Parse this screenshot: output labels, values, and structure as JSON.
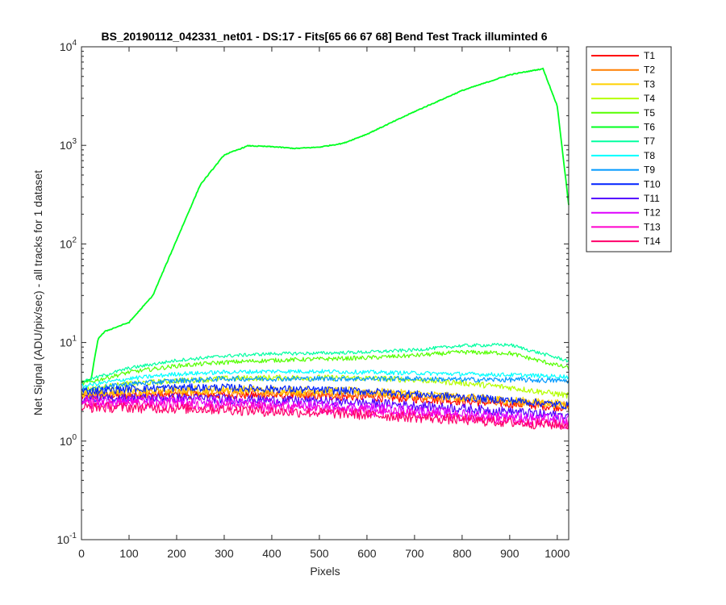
{
  "chart_data": {
    "type": "line",
    "title": "BS_20190112_042331_net01 - DS:17 - Fits[65  66  67  68]    Bend Test          Track illuminted 6",
    "xlabel": "Pixels",
    "ylabel": "Net Signal (ADU/pix/sec) - all tracks for 1 dataset",
    "xlim": [
      0,
      1024
    ],
    "ylim": [
      0.1,
      10000
    ],
    "yscale": "log",
    "xticks": [
      "0",
      "100",
      "200",
      "300",
      "400",
      "500",
      "600",
      "700",
      "800",
      "900",
      "1000"
    ],
    "yticks": [
      {
        "base": "10",
        "exp": "-1"
      },
      {
        "base": "10",
        "exp": "0"
      },
      {
        "base": "10",
        "exp": "1"
      },
      {
        "base": "10",
        "exp": "2"
      },
      {
        "base": "10",
        "exp": "3"
      },
      {
        "base": "10",
        "exp": "4"
      }
    ],
    "grid": false,
    "legend_position": "outside-right-top",
    "series": [
      {
        "name": "T1",
        "color": "#ff0000",
        "x": [
          0,
          100,
          200,
          300,
          400,
          500,
          600,
          700,
          800,
          900,
          1024
        ],
        "y": [
          2.8,
          2.9,
          2.95,
          2.95,
          2.9,
          2.85,
          2.8,
          2.7,
          2.55,
          2.4,
          2.2
        ]
      },
      {
        "name": "T2",
        "color": "#ff7f00",
        "x": [
          0,
          100,
          200,
          300,
          400,
          500,
          600,
          700,
          800,
          900,
          1024
        ],
        "y": [
          2.9,
          3.0,
          3.1,
          3.15,
          3.1,
          3.05,
          3.0,
          2.85,
          2.7,
          2.5,
          2.3
        ]
      },
      {
        "name": "T3",
        "color": "#ffd000",
        "x": [
          0,
          100,
          200,
          300,
          400,
          500,
          600,
          700,
          800,
          900,
          1024
        ],
        "y": [
          3.0,
          3.2,
          3.3,
          3.35,
          3.3,
          3.25,
          3.2,
          3.0,
          2.8,
          2.6,
          2.35
        ]
      },
      {
        "name": "T4",
        "color": "#b5ff00",
        "x": [
          0,
          100,
          200,
          300,
          400,
          500,
          600,
          700,
          800,
          900,
          1024
        ],
        "y": [
          3.3,
          3.8,
          4.1,
          4.3,
          4.4,
          4.4,
          4.35,
          4.2,
          3.9,
          3.5,
          2.9
        ]
      },
      {
        "name": "T5",
        "color": "#55ff00",
        "x": [
          0,
          100,
          200,
          300,
          400,
          500,
          600,
          700,
          800,
          900,
          1024
        ],
        "y": [
          3.8,
          5.0,
          5.8,
          6.3,
          6.6,
          6.8,
          7.0,
          7.4,
          8.0,
          7.8,
          5.5
        ]
      },
      {
        "name": "T6",
        "color": "#00ff20",
        "x": [
          0,
          20,
          35,
          50,
          100,
          150,
          200,
          250,
          300,
          350,
          400,
          450,
          500,
          550,
          600,
          700,
          800,
          900,
          970,
          1000,
          1024
        ],
        "y": [
          4,
          4.2,
          11,
          13,
          16,
          30,
          110,
          400,
          800,
          990,
          970,
          930,
          960,
          1050,
          1300,
          2200,
          3600,
          5200,
          6000,
          2500,
          250
        ]
      },
      {
        "name": "T7",
        "color": "#00ffa0",
        "x": [
          0,
          100,
          200,
          300,
          400,
          500,
          600,
          700,
          800,
          900,
          1024
        ],
        "y": [
          4.0,
          5.5,
          6.6,
          7.3,
          7.7,
          7.8,
          8.0,
          8.4,
          9.3,
          9.5,
          6.5
        ]
      },
      {
        "name": "T8",
        "color": "#00ffff",
        "x": [
          0,
          100,
          200,
          300,
          400,
          500,
          600,
          700,
          800,
          900,
          1024
        ],
        "y": [
          3.6,
          4.3,
          4.8,
          5.0,
          5.1,
          5.1,
          5.0,
          4.9,
          4.8,
          4.7,
          4.5
        ]
      },
      {
        "name": "T9",
        "color": "#0099ff",
        "x": [
          0,
          100,
          200,
          300,
          400,
          500,
          600,
          700,
          800,
          900,
          1024
        ],
        "y": [
          3.3,
          3.8,
          4.1,
          4.3,
          4.3,
          4.3,
          4.3,
          4.3,
          4.2,
          4.2,
          4.1
        ]
      },
      {
        "name": "T10",
        "color": "#0022ff",
        "x": [
          0,
          100,
          200,
          300,
          400,
          500,
          600,
          700,
          800,
          900,
          1024
        ],
        "y": [
          3.2,
          3.4,
          3.5,
          3.5,
          3.4,
          3.3,
          3.2,
          3.0,
          2.8,
          2.6,
          2.3
        ]
      },
      {
        "name": "T11",
        "color": "#5500ff",
        "x": [
          0,
          100,
          200,
          300,
          400,
          500,
          600,
          700,
          800,
          900,
          1024
        ],
        "y": [
          2.7,
          2.75,
          2.75,
          2.7,
          2.6,
          2.55,
          2.45,
          2.3,
          2.15,
          2.0,
          1.8
        ]
      },
      {
        "name": "T12",
        "color": "#dd00ff",
        "x": [
          0,
          100,
          200,
          300,
          400,
          500,
          600,
          700,
          800,
          900,
          1024
        ],
        "y": [
          2.6,
          2.6,
          2.55,
          2.5,
          2.4,
          2.3,
          2.2,
          2.05,
          1.9,
          1.8,
          1.65
        ]
      },
      {
        "name": "T13",
        "color": "#ff00cc",
        "x": [
          0,
          100,
          200,
          300,
          400,
          500,
          600,
          700,
          800,
          900,
          1024
        ],
        "y": [
          2.4,
          2.4,
          2.35,
          2.3,
          2.2,
          2.1,
          2.0,
          1.9,
          1.8,
          1.65,
          1.5
        ]
      },
      {
        "name": "T14",
        "color": "#ff006a",
        "x": [
          0,
          100,
          200,
          300,
          400,
          500,
          600,
          700,
          800,
          900,
          1024
        ],
        "y": [
          2.2,
          2.2,
          2.15,
          2.1,
          2.0,
          1.95,
          1.85,
          1.75,
          1.65,
          1.55,
          1.45
        ]
      }
    ]
  }
}
